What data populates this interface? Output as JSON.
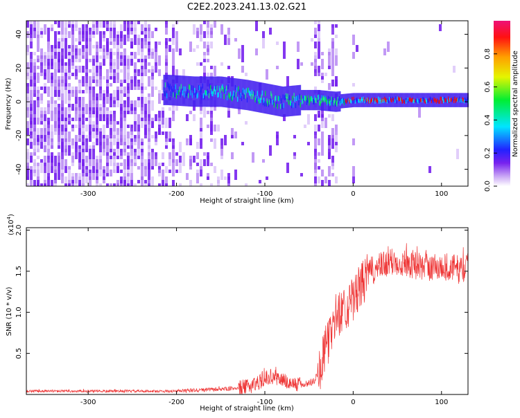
{
  "title": "C2E2.2023.241.13.02.G21",
  "colors": {
    "snr_line": "#ee3333",
    "noise_purple": "#7722ee",
    "axis": "#000000"
  },
  "chart_data": [
    {
      "type": "heatmap",
      "title": "C2E2.2023.241.13.02.G21",
      "xlabel": "Height of straight line (km)",
      "ylabel": "Frequency (Hz)",
      "xlim": [
        -370,
        130
      ],
      "ylim": [
        -50,
        48
      ],
      "x_ticks": [
        "-300",
        "-200",
        "-100",
        "0",
        "100"
      ],
      "x_tick_values": [
        -300,
        -200,
        -100,
        0,
        100
      ],
      "y_ticks": [
        "-40",
        "-20",
        "0",
        "20",
        "40"
      ],
      "y_tick_values": [
        -40,
        -20,
        0,
        20,
        40
      ],
      "colorbar": {
        "label": "Normalized spectral amplitude",
        "range": [
          0,
          1
        ],
        "ticks": [
          "0.0",
          "0.2",
          "0.4",
          "0.6",
          "0.8"
        ],
        "tick_values": [
          0.0,
          0.2,
          0.4,
          0.6,
          0.8
        ]
      },
      "signal_track": [
        {
          "x": -210,
          "y": 7
        },
        {
          "x": -180,
          "y": 6
        },
        {
          "x": -150,
          "y": 6
        },
        {
          "x": -120,
          "y": 4
        },
        {
          "x": -100,
          "y": 2
        },
        {
          "x": -80,
          "y": 0
        },
        {
          "x": -60,
          "y": 1
        },
        {
          "x": -40,
          "y": 1
        },
        {
          "x": -20,
          "y": 0
        },
        {
          "x": 0,
          "y": 1
        },
        {
          "x": 50,
          "y": 1
        },
        {
          "x": 100,
          "y": 1
        },
        {
          "x": 130,
          "y": 1
        }
      ]
    },
    {
      "type": "line",
      "xlabel": "Height of straight line (km)",
      "ylabel": "SNR (10 * v/v)",
      "y_multiplier": "(x10",
      "y_multiplier_exp": "4",
      "y_multiplier_close": ")",
      "xlim": [
        -370,
        130
      ],
      "ylim": [
        0,
        2.03
      ],
      "x_ticks": [
        "-300",
        "-200",
        "-100",
        "0",
        "100"
      ],
      "x_tick_values": [
        -300,
        -200,
        -100,
        0,
        100
      ],
      "y_ticks": [
        "0.5",
        "1.0",
        "1.5",
        "2.0"
      ],
      "y_tick_values": [
        0.5,
        1.0,
        1.5,
        2.0
      ],
      "series": [
        {
          "x": [
            -370,
            -300,
            -250,
            -200,
            -180,
            -160,
            -140,
            -120,
            -105,
            -95,
            -85,
            -70,
            -55,
            -45,
            -38,
            -30,
            -25,
            -20,
            -15,
            -10,
            -5,
            0,
            10,
            20,
            30,
            40,
            50,
            60,
            70,
            80,
            90,
            100,
            110,
            120,
            130
          ],
          "y": [
            0.04,
            0.04,
            0.04,
            0.04,
            0.05,
            0.06,
            0.07,
            0.09,
            0.16,
            0.22,
            0.2,
            0.13,
            0.12,
            0.16,
            0.3,
            0.6,
            0.75,
            0.95,
            1.0,
            1.05,
            1.1,
            1.15,
            1.35,
            1.5,
            1.55,
            1.6,
            1.62,
            1.6,
            1.58,
            1.55,
            1.55,
            1.55,
            1.55,
            1.52,
            1.55
          ]
        }
      ]
    }
  ]
}
